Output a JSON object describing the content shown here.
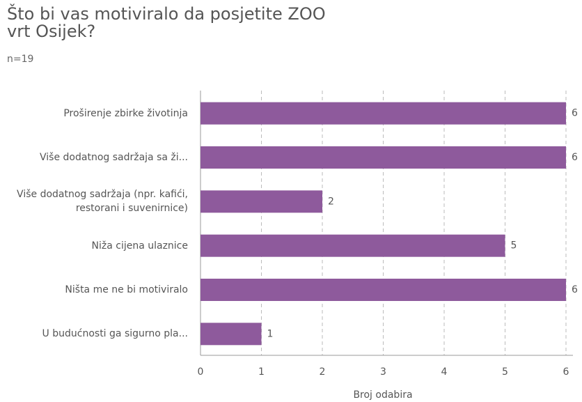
{
  "chart_data": {
    "type": "barh",
    "title": "Što bi vas motiviralo da posjetite ZOO vrt Osijek?",
    "subtitle": "n=19",
    "categories": [
      "Proširenje zbirke životinja",
      "Više dodatnog sadržaja sa ži...",
      "Više dodatnog sadržaja (npr. kafići, restorani i suvenirnice)",
      "Niža cijena ulaznice",
      "Ništa me ne bi motiviralo",
      "U budućnosti ga sigurno pla..."
    ],
    "values": [
      6,
      6,
      2,
      5,
      6,
      1
    ],
    "color": "#8e5a9c",
    "xlim": [
      0,
      6
    ],
    "xticks": [
      0,
      1,
      2,
      3,
      4,
      5,
      6
    ],
    "xlabel": "Broj odabira",
    "grid": true
  }
}
